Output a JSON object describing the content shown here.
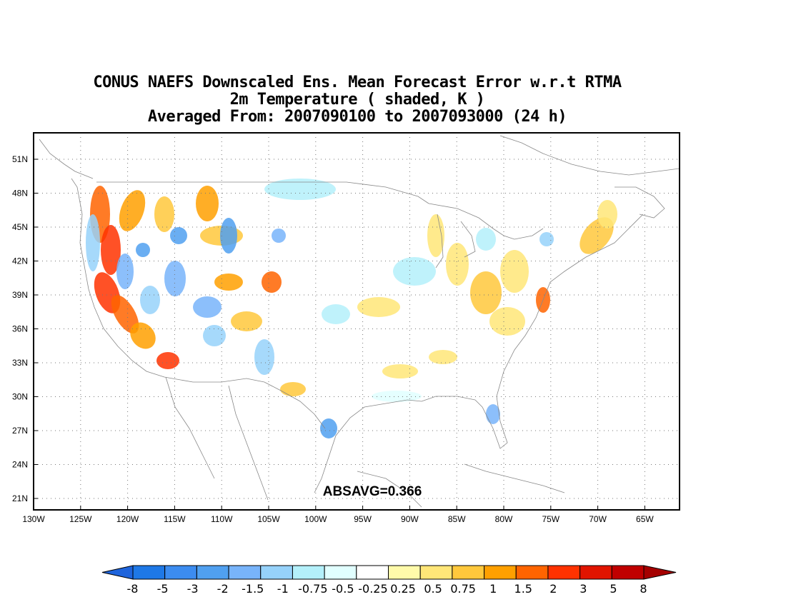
{
  "title": {
    "line1": "CONUS NAEFS Downscaled Ens. Mean Forecast Error w.r.t RTMA",
    "line2": "2m Temperature ( shaded, K )",
    "line3": "Averaged From: 2007090100 to 2007093000 (24 h)"
  },
  "map": {
    "lat_labels": [
      "51N",
      "48N",
      "45N",
      "42N",
      "39N",
      "36N",
      "33N",
      "30N",
      "27N",
      "24N",
      "21N"
    ],
    "lon_labels": [
      "130W",
      "125W",
      "120W",
      "115W",
      "110W",
      "105W",
      "100W",
      "95W",
      "90W",
      "85W",
      "80W",
      "75W",
      "70W",
      "65W"
    ],
    "absavg_label": "ABSAVG=0.366"
  },
  "colorbar": {
    "labels": [
      "-8",
      "-5",
      "-3",
      "-2",
      "-1.5",
      "-1",
      "-0.75",
      "-0.5",
      "-0.25",
      "0.25",
      "0.5",
      "0.75",
      "1",
      "1.5",
      "2",
      "3",
      "5",
      "8"
    ],
    "colors": [
      "#1e64dc",
      "#1e78e6",
      "#3c8cf0",
      "#50a0f0",
      "#78b4fa",
      "#96d2fa",
      "#b4f0fa",
      "#e1ffff",
      "#ffffff",
      "#fffaaa",
      "#ffe678",
      "#ffc83c",
      "#ffa000",
      "#ff6400",
      "#ff3200",
      "#e11400",
      "#c00000",
      "#a50000"
    ]
  }
}
